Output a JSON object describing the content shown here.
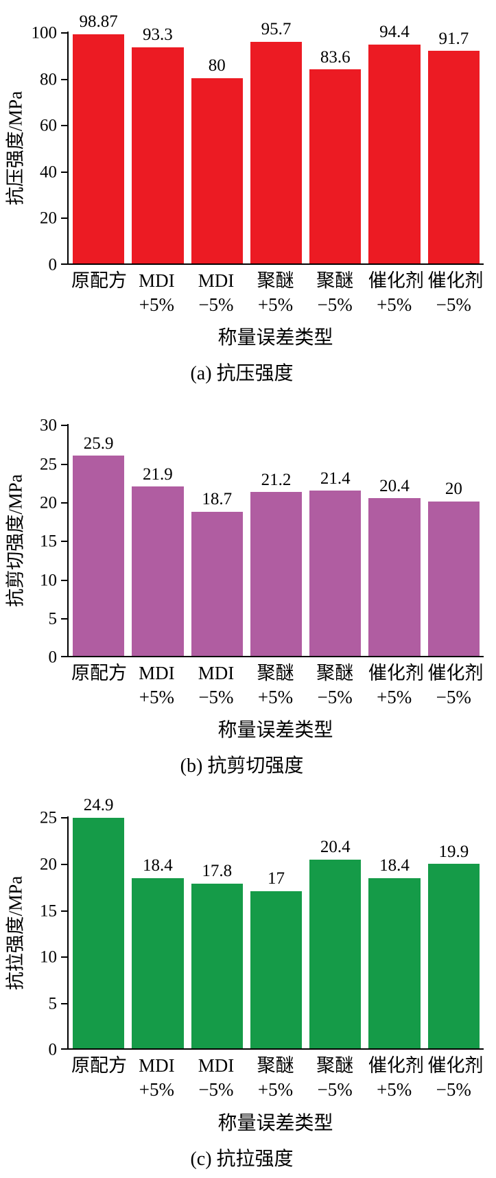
{
  "chart_data": [
    {
      "type": "bar",
      "id": "compressive-strength",
      "ylabel": "抗压强度/MPa",
      "xlabel": "称量误差类型",
      "caption": "(a) 抗压强度",
      "ylim": [
        0,
        100
      ],
      "yticks": [
        0,
        20,
        40,
        60,
        80,
        100
      ],
      "bar_color": "#ec1b23",
      "grid": false,
      "legend": "none",
      "categories": [
        [
          "原配方",
          ""
        ],
        [
          "MDI",
          "+5%"
        ],
        [
          "MDI",
          "−5%"
        ],
        [
          "聚醚",
          "+5%"
        ],
        [
          "聚醚",
          "−5%"
        ],
        [
          "催化剂",
          "+5%"
        ],
        [
          "催化剂",
          "−5%"
        ]
      ],
      "values": [
        98.87,
        93.3,
        80,
        95.7,
        83.6,
        94.4,
        91.7
      ],
      "value_labels": [
        "98.87",
        "93.3",
        "80",
        "95.7",
        "83.6",
        "94.4",
        "91.7"
      ]
    },
    {
      "type": "bar",
      "id": "shear-strength",
      "ylabel": "抗剪切强度/MPa",
      "xlabel": "称量误差类型",
      "caption": "(b) 抗剪切强度",
      "ylim": [
        0,
        30
      ],
      "yticks": [
        0,
        5,
        10,
        15,
        20,
        25,
        30
      ],
      "bar_color": "#b05da1",
      "grid": false,
      "legend": "none",
      "categories": [
        [
          "原配方",
          ""
        ],
        [
          "MDI",
          "+5%"
        ],
        [
          "MDI",
          "−5%"
        ],
        [
          "聚醚",
          "+5%"
        ],
        [
          "聚醚",
          "−5%"
        ],
        [
          "催化剂",
          "+5%"
        ],
        [
          "催化剂",
          "−5%"
        ]
      ],
      "values": [
        25.9,
        21.9,
        18.7,
        21.2,
        21.4,
        20.4,
        20
      ],
      "value_labels": [
        "25.9",
        "21.9",
        "18.7",
        "21.2",
        "21.4",
        "20.4",
        "20"
      ]
    },
    {
      "type": "bar",
      "id": "tensile-strength",
      "ylabel": "抗拉强度/MPa",
      "xlabel": "称量误差类型",
      "caption": "(c) 抗拉强度",
      "ylim": [
        0,
        25
      ],
      "yticks": [
        0,
        5,
        10,
        15,
        20,
        25
      ],
      "bar_color": "#159b48",
      "grid": false,
      "legend": "none",
      "categories": [
        [
          "原配方",
          ""
        ],
        [
          "MDI",
          "+5%"
        ],
        [
          "MDI",
          "−5%"
        ],
        [
          "聚醚",
          "+5%"
        ],
        [
          "聚醚",
          "−5%"
        ],
        [
          "催化剂",
          "+5%"
        ],
        [
          "催化剂",
          "−5%"
        ]
      ],
      "values": [
        24.9,
        18.4,
        17.8,
        17,
        20.4,
        18.4,
        19.9
      ],
      "value_labels": [
        "24.9",
        "18.4",
        "17.8",
        "17",
        "20.4",
        "18.4",
        "19.9"
      ]
    }
  ]
}
